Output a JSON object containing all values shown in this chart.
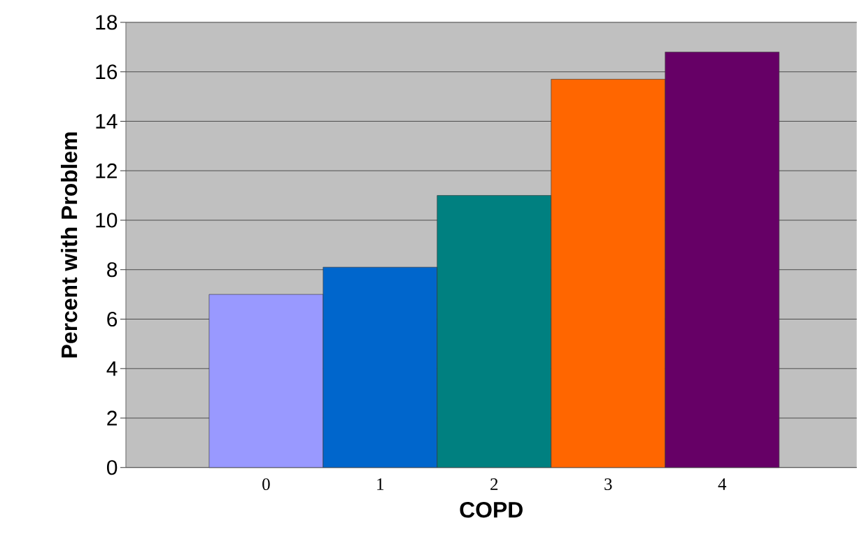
{
  "chart_data": {
    "type": "bar",
    "xlabel": "COPD",
    "ylabel": "Percent with Problem",
    "categories": [
      "0",
      "1",
      "2",
      "3",
      "4"
    ],
    "values": [
      7.0,
      8.1,
      11.0,
      15.7,
      16.8
    ],
    "colors": [
      "#9999ff",
      "#0066cc",
      "#008080",
      "#ff6600",
      "#660066"
    ],
    "ylim": [
      0,
      18
    ],
    "yticks": [
      0,
      2,
      4,
      6,
      8,
      10,
      12,
      14,
      16,
      18
    ],
    "grid": "y"
  }
}
